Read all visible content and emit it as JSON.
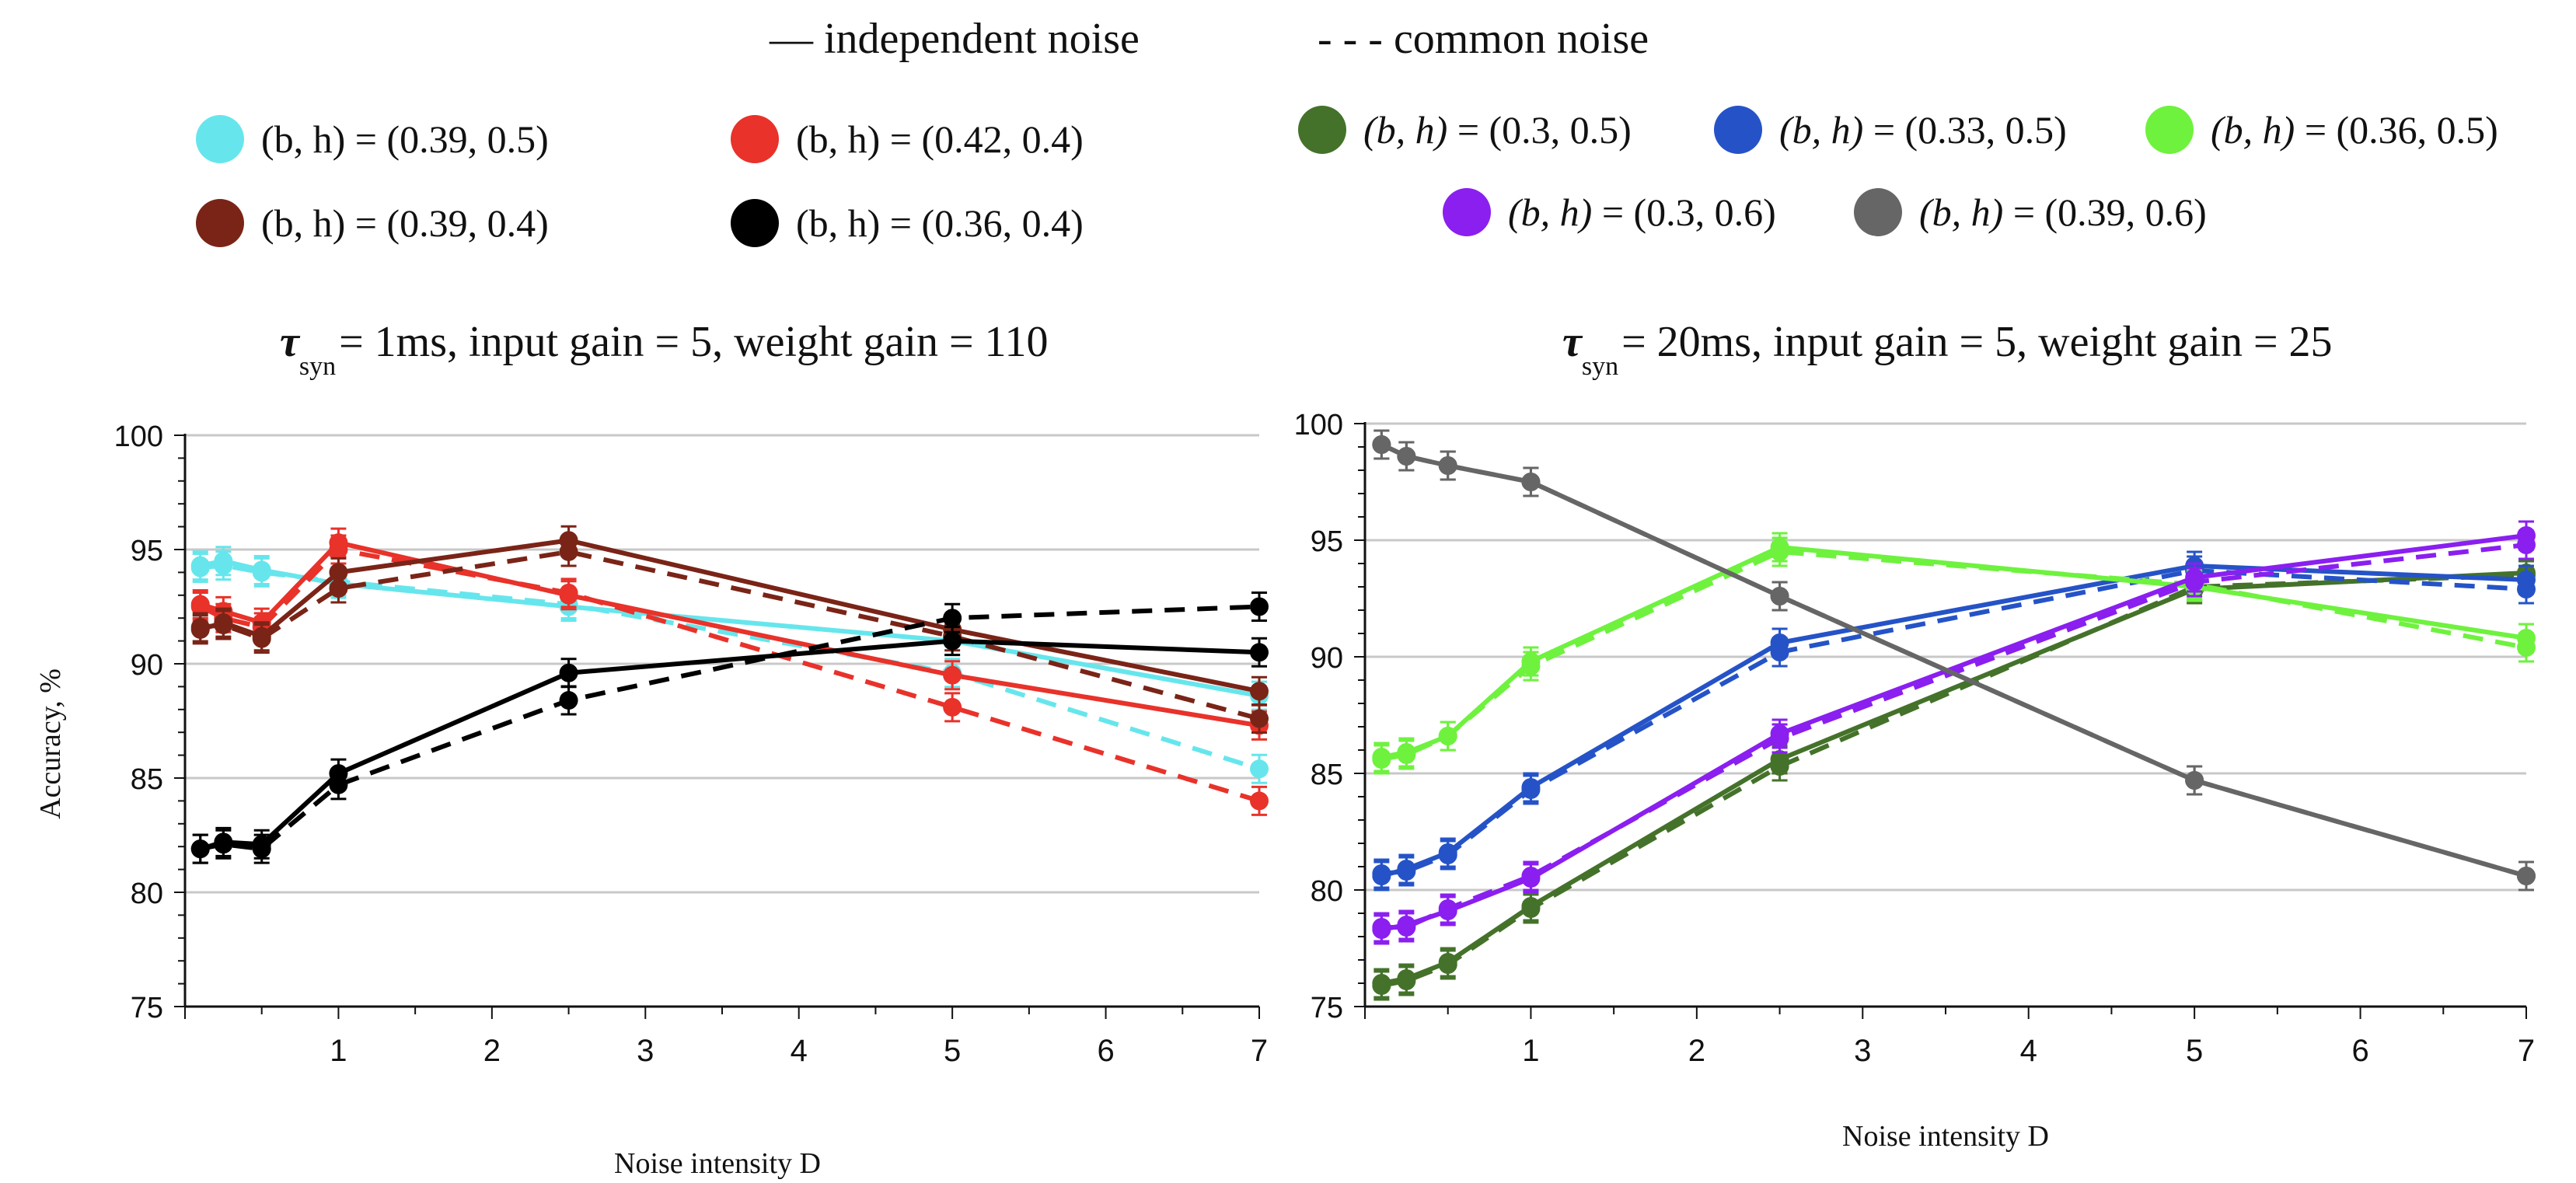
{
  "top_legend": {
    "solid_label": "— independent noise",
    "dashed_label": "- - - common noise"
  },
  "left_legend": [
    {
      "label": "(b, h) = (0.39, 0.5)",
      "color": "#66e6ec"
    },
    {
      "label": "(b, h) = (0.42, 0.4)",
      "color": "#e8322a"
    },
    {
      "label": "(b, h) = (0.39, 0.4)",
      "color": "#7a2417"
    },
    {
      "label": "(b, h) = (0.36, 0.4)",
      "color": "#000000"
    }
  ],
  "right_legend": [
    {
      "bh": "(b, h)",
      "value": " = (0.3, 0.5)",
      "color": "#44722a"
    },
    {
      "bh": "(b, h)",
      "value": " = (0.33, 0.5)",
      "color": "#2553c7"
    },
    {
      "bh": "(b, h)",
      "value": " = (0.36, 0.5)",
      "color": "#6ef23e"
    },
    {
      "bh": "(b, h)",
      "value": " = (0.3, 0.6)",
      "color": "#8a1ff0"
    },
    {
      "bh": "(b, h)",
      "value": " = (0.39, 0.6)",
      "color": "#666666"
    }
  ],
  "chart_data": [
    {
      "type": "line",
      "title": {
        "tau": "τ",
        "sub": "syn",
        "rest": "= 1ms, input gain = 5, weight gain = 110"
      },
      "xlabel": "Noise intensity D",
      "ylabel": "Accuracy, %",
      "xlim": [
        0,
        7
      ],
      "ylim": [
        75,
        100
      ],
      "xticks": [
        1,
        2,
        3,
        4,
        5,
        6,
        7
      ],
      "yticks": [
        75,
        80,
        85,
        90,
        95,
        100
      ],
      "x": [
        0.1,
        0.25,
        0.5,
        1,
        2.5,
        5,
        7
      ],
      "series": [
        {
          "name": "(b, h) = (0.39, 0.5)",
          "color": "#66e6ec",
          "style": "solid",
          "values": [
            94.3,
            94.5,
            94.1,
            93.5,
            92.5,
            91.0,
            88.6
          ]
        },
        {
          "name": "(b, h) = (0.39, 0.5)",
          "color": "#66e6ec",
          "style": "dashed",
          "values": [
            94.2,
            94.3,
            94.0,
            93.6,
            92.6,
            89.6,
            85.4
          ]
        },
        {
          "name": "(b, h) = (0.42, 0.4)",
          "color": "#e8322a",
          "style": "solid",
          "values": [
            92.6,
            92.3,
            91.8,
            95.3,
            93.0,
            89.5,
            87.3
          ]
        },
        {
          "name": "(b, h) = (0.42, 0.4)",
          "color": "#e8322a",
          "style": "dashed",
          "values": [
            92.5,
            92.0,
            91.6,
            95.0,
            93.1,
            88.1,
            84.0
          ]
        },
        {
          "name": "(b, h) = (0.39, 0.4)",
          "color": "#7a2417",
          "style": "solid",
          "values": [
            91.5,
            91.8,
            91.2,
            94.0,
            95.4,
            91.5,
            88.8
          ]
        },
        {
          "name": "(b, h) = (0.39, 0.4)",
          "color": "#7a2417",
          "style": "dashed",
          "values": [
            91.6,
            91.7,
            91.1,
            93.3,
            94.9,
            91.2,
            87.6
          ]
        },
        {
          "name": "(b, h) = (0.36, 0.4)",
          "color": "#000000",
          "style": "solid",
          "values": [
            81.9,
            82.2,
            82.1,
            85.2,
            89.6,
            91.0,
            90.5
          ]
        },
        {
          "name": "(b, h) = (0.36, 0.4)",
          "color": "#000000",
          "style": "dashed",
          "values": [
            81.9,
            82.1,
            81.9,
            84.7,
            88.4,
            92.0,
            92.5
          ]
        }
      ]
    },
    {
      "type": "line",
      "title": {
        "tau": "τ",
        "sub": "syn",
        "rest": "= 20ms, input gain = 5, weight gain = 25"
      },
      "xlabel": "Noise intensity D",
      "ylabel": "",
      "xlim": [
        0,
        7
      ],
      "ylim": [
        75,
        100
      ],
      "xticks": [
        1,
        2,
        3,
        4,
        5,
        6,
        7
      ],
      "yticks": [
        75,
        80,
        85,
        90,
        95,
        100
      ],
      "x": [
        0.1,
        0.25,
        0.5,
        1,
        2.5,
        5,
        7
      ],
      "series": [
        {
          "name": "(b, h) = (0.3, 0.5)",
          "color": "#44722a",
          "style": "solid",
          "values": [
            76.0,
            76.2,
            76.9,
            79.3,
            85.6,
            92.9,
            93.6
          ]
        },
        {
          "name": "(b, h) = (0.3, 0.5)",
          "color": "#44722a",
          "style": "dashed",
          "values": [
            75.9,
            76.1,
            76.8,
            79.2,
            85.3,
            93.0,
            93.5
          ]
        },
        {
          "name": "(b, h) = (0.33, 0.5)",
          "color": "#2553c7",
          "style": "solid",
          "values": [
            80.6,
            80.9,
            81.6,
            84.4,
            90.6,
            93.9,
            93.3
          ]
        },
        {
          "name": "(b, h) = (0.33, 0.5)",
          "color": "#2553c7",
          "style": "dashed",
          "values": [
            80.7,
            80.8,
            81.5,
            84.3,
            90.2,
            93.7,
            92.9
          ]
        },
        {
          "name": "(b, h) = (0.36, 0.5)",
          "color": "#6ef23e",
          "style": "solid",
          "values": [
            85.7,
            85.9,
            86.6,
            89.8,
            94.7,
            93.0,
            90.8
          ]
        },
        {
          "name": "(b, h) = (0.36, 0.5)",
          "color": "#6ef23e",
          "style": "dashed",
          "values": [
            85.6,
            85.8,
            86.6,
            89.6,
            94.5,
            93.1,
            90.4
          ]
        },
        {
          "name": "(b, h) = (0.3, 0.6)",
          "color": "#8a1ff0",
          "style": "solid",
          "values": [
            78.3,
            78.5,
            79.1,
            80.5,
            86.7,
            93.4,
            95.2
          ]
        },
        {
          "name": "(b, h) = (0.3, 0.6)",
          "color": "#8a1ff0",
          "style": "dashed",
          "values": [
            78.4,
            78.4,
            79.2,
            80.6,
            86.5,
            93.2,
            94.8
          ]
        },
        {
          "name": "(b, h) = (0.39, 0.6)",
          "color": "#666666",
          "style": "solid",
          "values": [
            99.1,
            98.6,
            98.2,
            97.5,
            92.6,
            84.7,
            80.6
          ]
        },
        {
          "name": "(b, h) = (0.39, 0.6)",
          "color": "#666666",
          "style": "dashed",
          "values": [
            99.1,
            98.6,
            98.2,
            97.5,
            92.6,
            84.7,
            80.6
          ]
        }
      ]
    }
  ]
}
